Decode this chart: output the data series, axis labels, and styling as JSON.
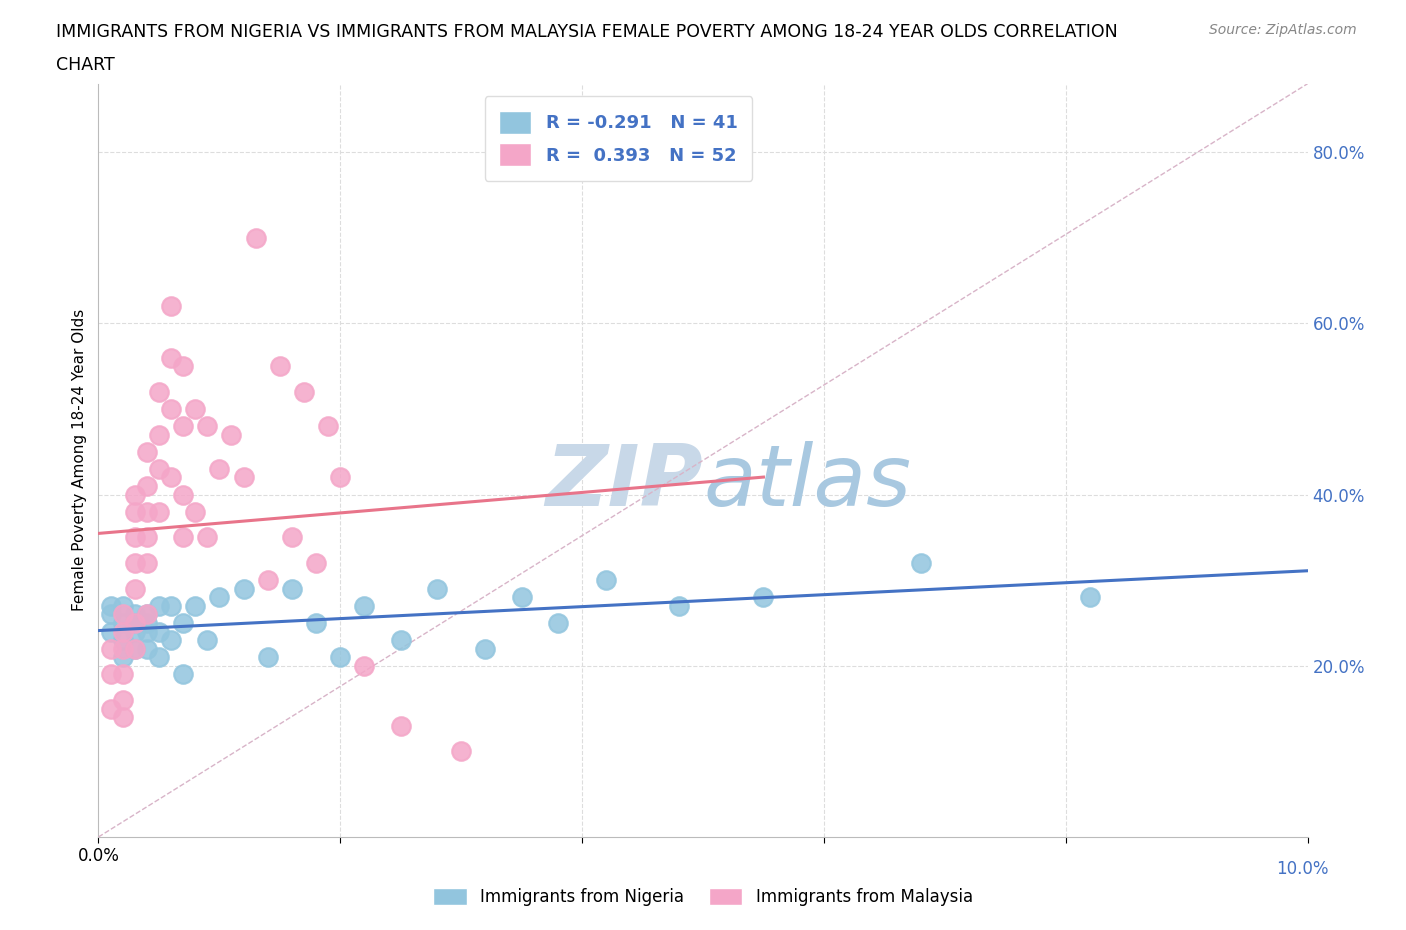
{
  "title_line1": "IMMIGRANTS FROM NIGERIA VS IMMIGRANTS FROM MALAYSIA FEMALE POVERTY AMONG 18-24 YEAR OLDS CORRELATION",
  "title_line2": "CHART",
  "source": "Source: ZipAtlas.com",
  "ylabel": "Female Poverty Among 18-24 Year Olds",
  "xlim": [
    0.0,
    0.1
  ],
  "ylim": [
    0.0,
    0.88
  ],
  "yticks": [
    0.2,
    0.4,
    0.6,
    0.8
  ],
  "ytick_labels": [
    "20.0%",
    "40.0%",
    "60.0%",
    "80.0%"
  ],
  "xticks": [
    0.0,
    0.02,
    0.04,
    0.06,
    0.08,
    0.1
  ],
  "nigeria_color": "#92C5DE",
  "malaysia_color": "#F4A6C8",
  "nigeria_R": -0.291,
  "nigeria_N": 41,
  "malaysia_R": 0.393,
  "malaysia_N": 52,
  "nigeria_line_color": "#4472C4",
  "malaysia_line_color": "#E8748A",
  "diagonal_color": "#D8B4C8",
  "legend_label_nigeria": "Immigrants from Nigeria",
  "legend_label_malaysia": "Immigrants from Malaysia",
  "nigeria_x": [
    0.001,
    0.001,
    0.001,
    0.002,
    0.002,
    0.002,
    0.002,
    0.003,
    0.003,
    0.003,
    0.003,
    0.004,
    0.004,
    0.004,
    0.004,
    0.005,
    0.005,
    0.005,
    0.006,
    0.006,
    0.007,
    0.007,
    0.008,
    0.009,
    0.01,
    0.012,
    0.014,
    0.016,
    0.018,
    0.02,
    0.022,
    0.025,
    0.028,
    0.032,
    0.035,
    0.038,
    0.042,
    0.048,
    0.055,
    0.068,
    0.082
  ],
  "nigeria_y": [
    0.27,
    0.26,
    0.24,
    0.27,
    0.25,
    0.23,
    0.21,
    0.26,
    0.25,
    0.24,
    0.22,
    0.26,
    0.25,
    0.24,
    0.22,
    0.27,
    0.24,
    0.21,
    0.27,
    0.23,
    0.25,
    0.19,
    0.27,
    0.23,
    0.28,
    0.29,
    0.21,
    0.29,
    0.25,
    0.21,
    0.27,
    0.23,
    0.29,
    0.22,
    0.28,
    0.25,
    0.3,
    0.27,
    0.28,
    0.32,
    0.28
  ],
  "malaysia_x": [
    0.001,
    0.001,
    0.001,
    0.002,
    0.002,
    0.002,
    0.002,
    0.002,
    0.002,
    0.003,
    0.003,
    0.003,
    0.003,
    0.003,
    0.003,
    0.003,
    0.004,
    0.004,
    0.004,
    0.004,
    0.004,
    0.004,
    0.005,
    0.005,
    0.005,
    0.005,
    0.006,
    0.006,
    0.006,
    0.006,
    0.007,
    0.007,
    0.007,
    0.007,
    0.008,
    0.008,
    0.009,
    0.009,
    0.01,
    0.011,
    0.012,
    0.013,
    0.014,
    0.015,
    0.016,
    0.017,
    0.018,
    0.019,
    0.02,
    0.022,
    0.025,
    0.03
  ],
  "malaysia_y": [
    0.22,
    0.19,
    0.15,
    0.26,
    0.24,
    0.22,
    0.19,
    0.16,
    0.14,
    0.4,
    0.38,
    0.35,
    0.32,
    0.29,
    0.25,
    0.22,
    0.45,
    0.41,
    0.38,
    0.35,
    0.32,
    0.26,
    0.52,
    0.47,
    0.43,
    0.38,
    0.62,
    0.56,
    0.5,
    0.42,
    0.55,
    0.48,
    0.4,
    0.35,
    0.5,
    0.38,
    0.48,
    0.35,
    0.43,
    0.47,
    0.42,
    0.7,
    0.3,
    0.55,
    0.35,
    0.52,
    0.32,
    0.48,
    0.42,
    0.2,
    0.13,
    0.1
  ],
  "watermark_zip": "ZIP",
  "watermark_atlas": "atlas",
  "watermark_color_zip": "#C8D8E8",
  "watermark_color_atlas": "#A8C8E0",
  "background_color": "#FFFFFF",
  "grid_color": "#DDDDDD"
}
